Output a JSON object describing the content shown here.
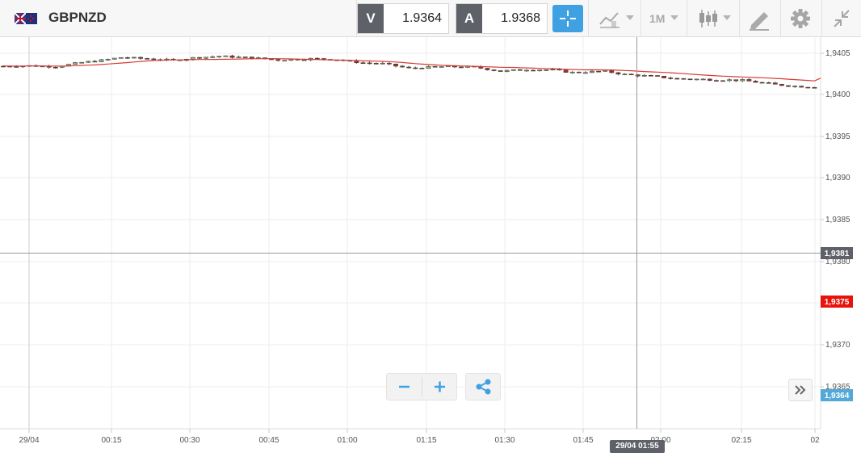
{
  "toolbar": {
    "symbol": "GBPNZD",
    "sell": {
      "tag": "V",
      "price": "1.9364"
    },
    "buy": {
      "tag": "A",
      "price": "1.9368"
    },
    "timeframe": "1M",
    "icons": [
      "flag-icon",
      "crosshair-icon",
      "indicators-icon",
      "candles-icon",
      "drawing-tools-icon",
      "gear-icon",
      "collapse-icon"
    ]
  },
  "chart_data": {
    "type": "candlestick",
    "y_ticks": [
      "1,9405",
      "1,9400",
      "1,9395",
      "1,9390",
      "1,9385",
      "1,9380",
      "1,9375",
      "1,9370",
      "1,9365"
    ],
    "x_ticks": [
      "29/04",
      "00:15",
      "00:30",
      "00:45",
      "01:00",
      "01:15",
      "01:30",
      "01:45",
      "02:00",
      "02:15",
      "02"
    ],
    "crosshair_price": "1,9381",
    "ma_price": "1,9375",
    "last_price": "1,9364",
    "crosshair_time": "29/04 01:55",
    "colors": {
      "up": "#8bbf7f",
      "down": "#a33020",
      "ma": "#d93b35",
      "last": "#52a8d8",
      "ma_badge": "#e8120c",
      "crosshair_badge": "#5e6168"
    }
  }
}
